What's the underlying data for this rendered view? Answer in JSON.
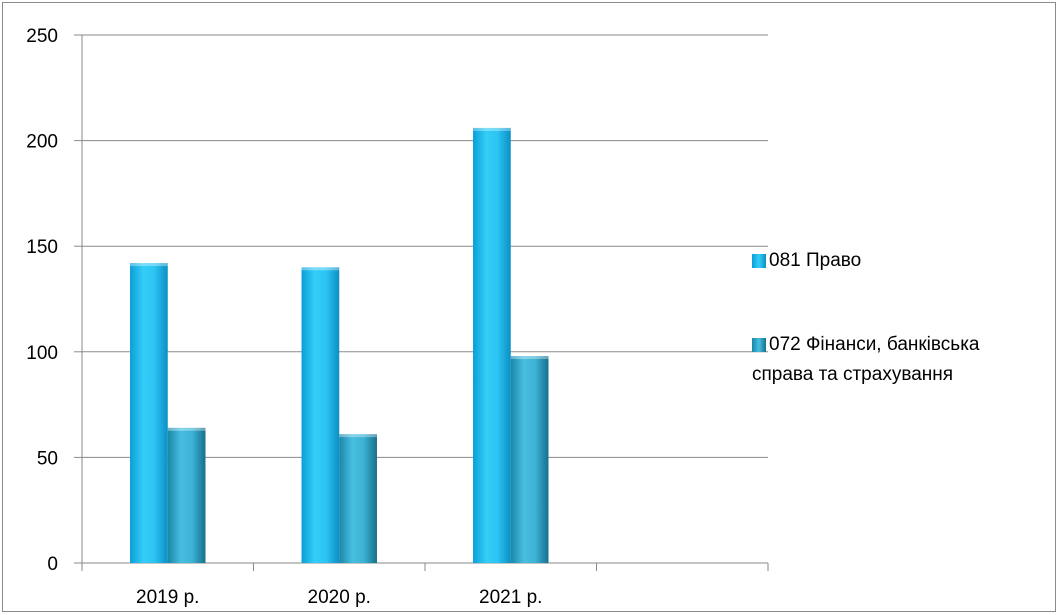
{
  "chart_data": {
    "type": "bar",
    "categories": [
      "2019 р.",
      "2020 р.",
      "2021 р.",
      ""
    ],
    "series": [
      {
        "name": "081 Право",
        "values": [
          142,
          140,
          206,
          null
        ],
        "color": "#1ab4e6"
      },
      {
        "name": "072 Фінанси, банківська справа та страхування",
        "values": [
          64,
          61,
          98,
          null
        ],
        "color": "#2a9ec2"
      }
    ],
    "yticks": [
      0,
      50,
      100,
      150,
      200,
      250
    ],
    "ylim": [
      0,
      250
    ],
    "grid": true,
    "legend_position": "right"
  },
  "legend": {
    "item1": "081 Право",
    "item2_line1": "072 Фінанси, банківська",
    "item2_line2": "справа та страхування"
  }
}
